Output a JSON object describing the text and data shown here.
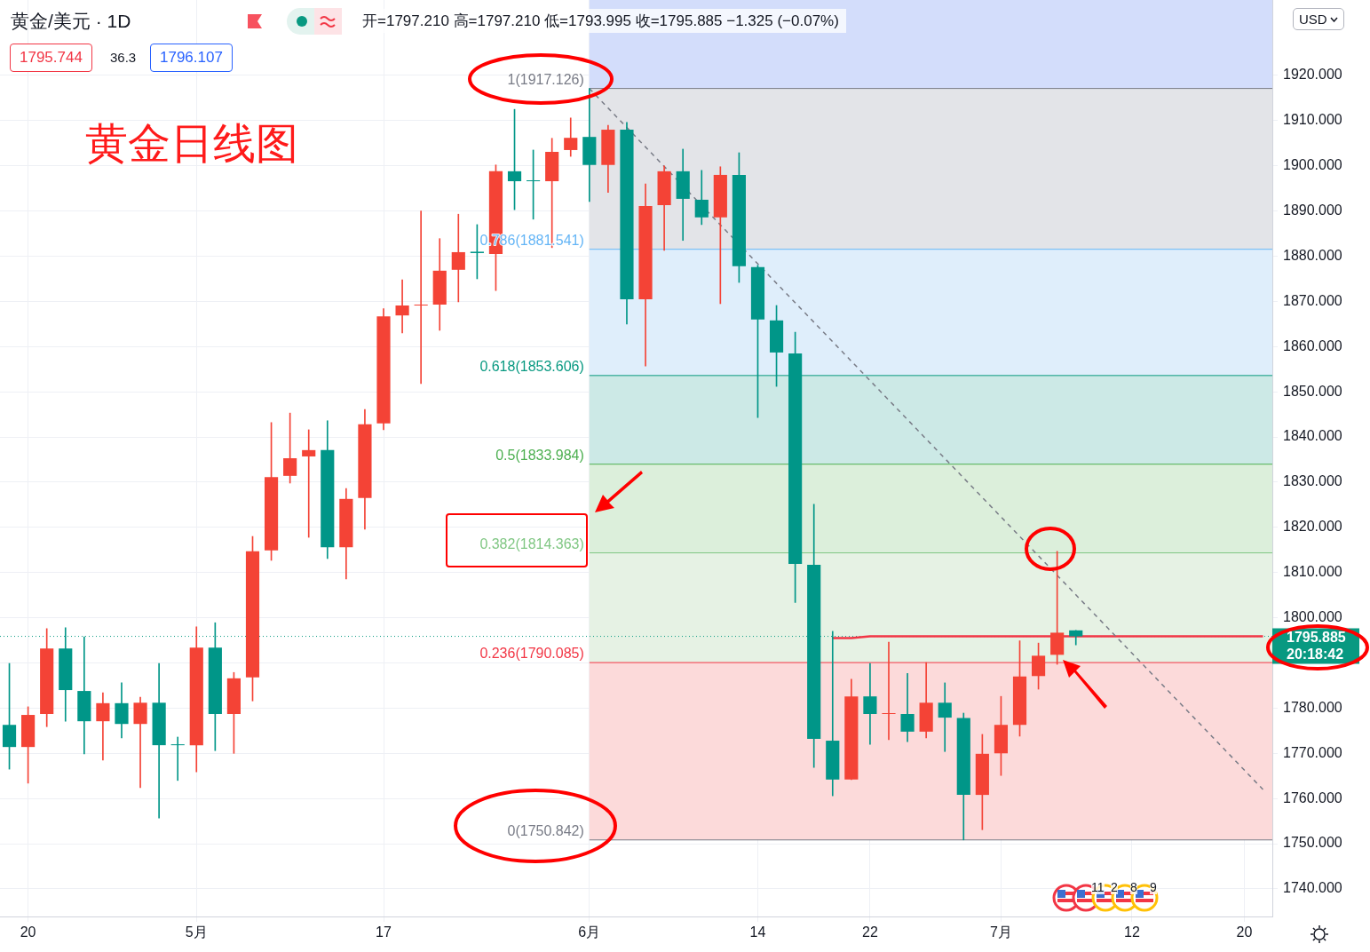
{
  "chart_data": {
    "type": "candlestick",
    "title": "黄金/美元 · 1D",
    "categories": [
      null,
      "20",
      null,
      null,
      null,
      null,
      null,
      null,
      null,
      null,
      "5月",
      null,
      null,
      null,
      null,
      null,
      null,
      null,
      null,
      null,
      "17",
      null,
      null,
      null,
      null,
      null,
      null,
      null,
      null,
      null,
      null,
      "6月",
      null,
      null,
      null,
      null,
      null,
      null,
      null,
      null,
      "14",
      null,
      null,
      null,
      null,
      null,
      "22",
      null,
      null,
      null,
      null,
      null,
      null,
      "7月",
      null,
      null,
      null,
      null,
      null,
      null,
      "12",
      null,
      null,
      null,
      null,
      null,
      "20",
      null
    ],
    "ohlc": [
      [
        1776.3,
        1789.9,
        1766.5,
        1771.4
      ],
      [
        1771.4,
        1780.3,
        1763.4,
        1778.5
      ],
      [
        1778.7,
        1797.6,
        1775.9,
        1793.2
      ],
      [
        1793.2,
        1797.8,
        1777.1,
        1784.0
      ],
      [
        1783.8,
        1795.8,
        1769.9,
        1777.1
      ],
      [
        1777.1,
        1783.4,
        1768.5,
        1781.1
      ],
      [
        1781.1,
        1785.6,
        1773.4,
        1776.5
      ],
      [
        1776.5,
        1782.4,
        1762.4,
        1781.2
      ],
      [
        1781.2,
        1789.9,
        1755.7,
        1771.8
      ],
      [
        1772.0,
        1773.6,
        1764.0,
        1771.8
      ],
      [
        1771.8,
        1798.0,
        1765.9,
        1793.4
      ],
      [
        1793.4,
        1798.9,
        1770.6,
        1778.7
      ],
      [
        1778.7,
        1787.9,
        1770.0,
        1786.6
      ],
      [
        1786.8,
        1818.0,
        1781.6,
        1814.7
      ],
      [
        1814.9,
        1843.2,
        1812.7,
        1831.1
      ],
      [
        1831.4,
        1845.3,
        1829.8,
        1835.3
      ],
      [
        1835.7,
        1841.6,
        1817.8,
        1837.1
      ],
      [
        1837.1,
        1843.6,
        1813.1,
        1815.6
      ],
      [
        1815.6,
        1828.6,
        1808.6,
        1826.3
      ],
      [
        1826.5,
        1846.1,
        1819.6,
        1842.8
      ],
      [
        1843.0,
        1868.4,
        1841.6,
        1866.7
      ],
      [
        1866.9,
        1874.8,
        1863.0,
        1869.1
      ],
      [
        1869.1,
        1890.0,
        1851.8,
        1869.3
      ],
      [
        1869.3,
        1883.9,
        1863.6,
        1876.8
      ],
      [
        1877.0,
        1889.3,
        1869.9,
        1880.9
      ],
      [
        1881.0,
        1887.0,
        1875.0,
        1880.7
      ],
      [
        1880.5,
        1900.2,
        1872.4,
        1898.8
      ],
      [
        1898.8,
        1912.5,
        1890.3,
        1896.6
      ],
      [
        1896.8,
        1903.5,
        1888.2,
        1896.6
      ],
      [
        1896.6,
        1906.1,
        1881.9,
        1903.1
      ],
      [
        1903.5,
        1910.6,
        1902.1,
        1906.2
      ],
      [
        1906.4,
        1917.126,
        1892.1,
        1900.2
      ],
      [
        1900.2,
        1909.0,
        1894.1,
        1908.0
      ],
      [
        1908.0,
        1909.6,
        1865.0,
        1870.5
      ],
      [
        1870.5,
        1896.0,
        1855.7,
        1891.1
      ],
      [
        1891.3,
        1900.0,
        1881.3,
        1898.8
      ],
      [
        1898.8,
        1903.7,
        1883.5,
        1892.7
      ],
      [
        1892.5,
        1899.0,
        1887.0,
        1888.6
      ],
      [
        1888.6,
        1899.8,
        1869.5,
        1898.0
      ],
      [
        1898.0,
        1902.9,
        1874.2,
        1877.8
      ],
      [
        1877.6,
        1878.0,
        1844.3,
        1866.0
      ],
      [
        1865.8,
        1869.1,
        1851.2,
        1858.7
      ],
      [
        1858.5,
        1863.2,
        1803.4,
        1811.9
      ],
      [
        1811.7,
        1825.1,
        1766.9,
        1773.2
      ],
      [
        1772.8,
        1797.0,
        1760.6,
        1764.2
      ],
      [
        1764.2,
        1786.4,
        1764.2,
        1782.6
      ],
      [
        1782.6,
        1789.9,
        1772.0,
        1778.7
      ],
      [
        1778.7,
        1794.6,
        1773.0,
        1778.8
      ],
      [
        1778.7,
        1787.7,
        1772.6,
        1774.8
      ],
      [
        1774.8,
        1790.1,
        1773.4,
        1781.2
      ],
      [
        1781.2,
        1785.6,
        1770.4,
        1777.9
      ],
      [
        1777.8,
        1778.9,
        1750.842,
        1760.8
      ],
      [
        1760.8,
        1774.2,
        1753.1,
        1769.9
      ],
      [
        1770.0,
        1782.6,
        1765.1,
        1776.3
      ],
      [
        1776.3,
        1794.9,
        1773.8,
        1787.0
      ],
      [
        1787.1,
        1794.4,
        1784.2,
        1791.6
      ],
      [
        1791.8,
        1814.7,
        1789.7,
        1796.7
      ],
      [
        1797.21,
        1797.21,
        1793.995,
        1795.885
      ],
      null,
      null,
      null,
      null,
      null,
      null,
      null,
      null,
      null,
      null
    ],
    "colors": [
      "#009688",
      "#f44336",
      "#f44336",
      "#009688",
      "#009688",
      "#f44336",
      "#009688",
      "#f44336",
      "#009688",
      "#009688",
      "#f44336",
      "#009688",
      "#f44336",
      "#f44336",
      "#f44336",
      "#f44336",
      "#f44336",
      "#009688",
      "#f44336",
      "#f44336",
      "#f44336",
      "#f44336",
      "#f44336",
      "#f44336",
      "#f44336",
      "#009688",
      "#f44336",
      "#009688",
      "#009688",
      "#f44336",
      "#f44336",
      "#009688",
      "#f44336",
      "#009688",
      "#f44336",
      "#f44336",
      "#009688",
      "#009688",
      "#f44336",
      "#009688",
      "#009688",
      "#009688",
      "#009688",
      "#009688",
      "#009688",
      "#f44336",
      "#009688",
      "#f44336",
      "#009688",
      "#f44336",
      "#009688",
      "#009688",
      "#f44336",
      "#f44336",
      "#f44336",
      "#f44336",
      "#f44336",
      "#009688",
      null,
      null,
      null,
      null,
      null,
      null,
      null,
      null,
      null,
      null
    ],
    "series": [
      {
        "type": "line",
        "color": "#787b86",
        "line_style": "dashed",
        "values": [
          null,
          null,
          null,
          null,
          null,
          null,
          null,
          null,
          null,
          null,
          null,
          null,
          null,
          null,
          null,
          null,
          null,
          null,
          null,
          null,
          null,
          null,
          null,
          null,
          null,
          null,
          null,
          null,
          null,
          null,
          null,
          1917.1,
          null,
          null,
          null,
          null,
          null,
          null,
          null,
          null,
          null,
          null,
          null,
          null,
          null,
          null,
          null,
          null,
          null,
          null,
          null,
          null,
          null,
          null,
          null,
          null,
          null,
          null,
          null,
          null,
          null,
          null,
          null,
          null,
          null,
          null,
          null,
          1762.0
        ]
      },
      {
        "type": "line",
        "color": "#f23645",
        "line_style": "solid",
        "values": [
          null,
          null,
          null,
          null,
          null,
          null,
          null,
          null,
          null,
          null,
          null,
          null,
          null,
          null,
          null,
          null,
          null,
          null,
          null,
          null,
          null,
          null,
          null,
          null,
          null,
          null,
          null,
          null,
          null,
          null,
          null,
          null,
          null,
          null,
          null,
          null,
          null,
          null,
          null,
          null,
          null,
          null,
          null,
          null,
          1795.5,
          1795.5,
          1795.9,
          null,
          null,
          null,
          null,
          null,
          null,
          null,
          null,
          null,
          null,
          null,
          null,
          null,
          null,
          null,
          null,
          null,
          null,
          null,
          null,
          1795.9
        ]
      }
    ],
    "marker": "none",
    "ylim": [
      1733.9,
      1936.7
    ],
    "yticks": [
      {
        "value": 1740,
        "label": "1740.000"
      },
      {
        "value": 1750,
        "label": "1750.000"
      },
      {
        "value": 1760,
        "label": "1760.000"
      },
      {
        "value": 1770,
        "label": "1770.000"
      },
      {
        "value": 1780,
        "label": "1780.000"
      },
      {
        "value": 1790,
        "label": null
      },
      {
        "value": 1800,
        "label": "1800.000"
      },
      {
        "value": 1810,
        "label": "1810.000"
      },
      {
        "value": 1820,
        "label": "1820.000"
      },
      {
        "value": 1830,
        "label": "1830.000"
      },
      {
        "value": 1840,
        "label": "1840.000"
      },
      {
        "value": 1850,
        "label": "1850.000"
      },
      {
        "value": 1860,
        "label": "1860.000"
      },
      {
        "value": 1870,
        "label": "1870.000"
      },
      {
        "value": 1880,
        "label": "1880.000"
      },
      {
        "value": 1890,
        "label": "1890.000"
      },
      {
        "value": 1900,
        "label": "1900.000"
      },
      {
        "value": 1910,
        "label": "1910.000"
      },
      {
        "value": 1920,
        "label": "1920.000"
      }
    ],
    "grid": true,
    "bands": [
      {
        "axis": "y",
        "from": 1917.126,
        "to": 1936.7,
        "color": "#d3ddfb"
      },
      {
        "axis": "y",
        "from": 1881.541,
        "to": 1917.126,
        "color": "#e3e4e8"
      },
      {
        "axis": "y",
        "from": 1853.606,
        "to": 1881.541,
        "color": "#dfeefb"
      },
      {
        "axis": "y",
        "from": 1833.984,
        "to": 1853.606,
        "color": "#cce9e6"
      },
      {
        "axis": "y",
        "from": 1814.363,
        "to": 1833.984,
        "color": "#dcefdb"
      },
      {
        "axis": "y",
        "from": 1790.085,
        "to": 1814.363,
        "color": "#e6f2e4"
      },
      {
        "axis": "y",
        "from": 1750.842,
        "to": 1790.085,
        "color": "#fcdada"
      }
    ],
    "ref_lines": [
      {
        "axis": "y",
        "value": 1917.126,
        "label": "1(1917.126)",
        "color": "#787b86",
        "line_style": "solid"
      },
      {
        "axis": "y",
        "value": 1881.541,
        "label": "0.786(1881.541)",
        "color": "#64b5f6",
        "line_style": "solid"
      },
      {
        "axis": "y",
        "value": 1853.606,
        "label": "0.618(1853.606)",
        "color": "#089981",
        "line_style": "solid"
      },
      {
        "axis": "y",
        "value": 1833.984,
        "label": "0.5(1833.984)",
        "color": "#4caf50",
        "line_style": "solid"
      },
      {
        "axis": "y",
        "value": 1814.363,
        "label": "0.382(1814.363)",
        "color": "#81c784",
        "line_style": "solid"
      },
      {
        "axis": "y",
        "value": 1790.085,
        "label": "0.236(1790.085)",
        "color": "#f23645",
        "line_style": "solid"
      },
      {
        "axis": "y",
        "value": 1750.842,
        "label": "0(1750.842)",
        "color": "#787b86",
        "line_style": "solid"
      },
      {
        "axis": "y",
        "value": 1795.885,
        "label": "1795.885",
        "color": "#089981",
        "line_style": "dotted"
      }
    ],
    "annotations": [
      "开=1797.210 高=1797.210 低=1793.995 收=1795.885 −1.325 (−0.07%)",
      "1795.744",
      "36.3",
      "1796.107",
      "黄金日线图",
      "USD",
      "20:18:42",
      "11",
      "2",
      "8",
      "9"
    ]
  }
}
